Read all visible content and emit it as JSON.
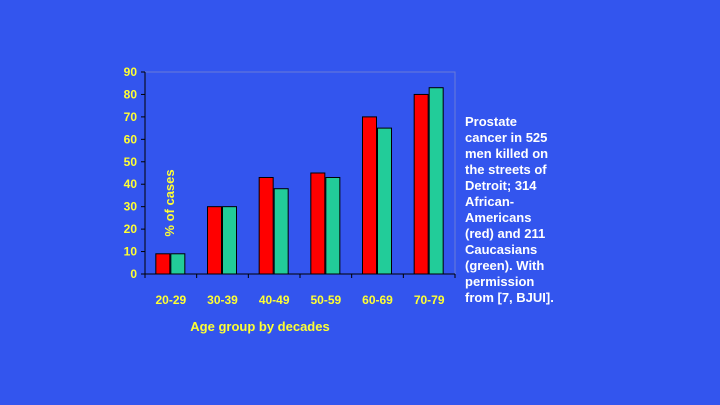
{
  "caption": "Prostate\ncancer in 525\nmen killed on\nthe streets of\nDetroit; 314\nAfrican-\nAmericans\n(red) and 211\nCaucasians\n(green).  With\npermission\nfrom [7, BJUI].",
  "chart_data": {
    "type": "bar",
    "categories": [
      "20-29",
      "30-39",
      "40-49",
      "50-59",
      "60-69",
      "70-79"
    ],
    "series": [
      {
        "color": "#ff0000",
        "values": [
          9,
          30,
          43,
          45,
          70,
          80
        ]
      },
      {
        "color": "#22cc99",
        "values": [
          9,
          30,
          38,
          43,
          65,
          83
        ]
      }
    ],
    "xlabel": "Age group by decades",
    "ylabel": "% of cases",
    "ylim": [
      0,
      90
    ],
    "yticks": [
      0,
      10,
      20,
      30,
      40,
      50,
      60,
      70,
      80,
      90
    ],
    "grid": false,
    "legend": "none",
    "colors": {
      "background": "#3355ee",
      "tick_text": "#ffff33",
      "caption_text": "#ffffff",
      "axis": "#000000"
    }
  }
}
